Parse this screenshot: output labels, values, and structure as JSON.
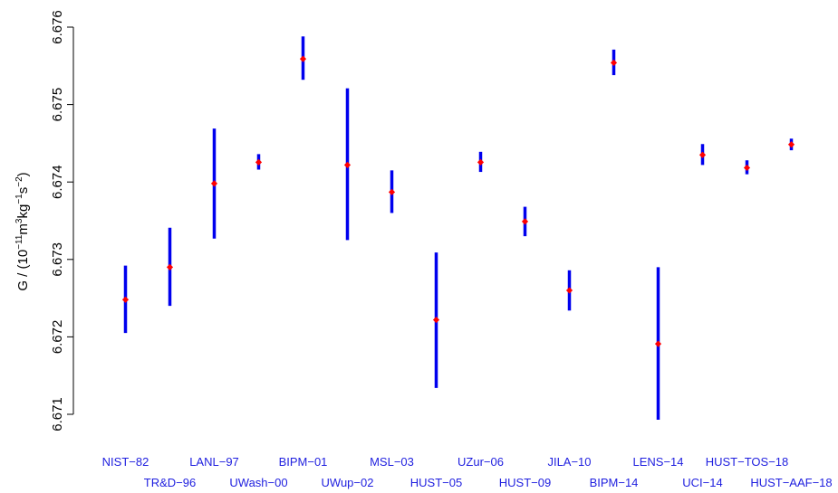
{
  "chart_data": {
    "type": "scatter",
    "title": "",
    "ylabel_parts": {
      "prefix": "G  /  (10",
      "exp1": "−11",
      "unit1": "m",
      "exp2": "3",
      "unit2": "kg",
      "exp3": "−1",
      "unit3": "s",
      "exp4": "−2",
      "suffix": ")"
    },
    "ylim": [
      6.671,
      6.676
    ],
    "yticks": [
      6.671,
      6.672,
      6.673,
      6.674,
      6.675,
      6.676
    ],
    "ytick_labels": [
      "6.671",
      "6.672",
      "6.673",
      "6.674",
      "6.675",
      "6.676"
    ],
    "categories": [
      "NIST−82",
      "TR&D−96",
      "LANL−97",
      "UWash−00",
      "BIPM−01",
      "UWup−02",
      "MSL−03",
      "HUST−05",
      "UZur−06",
      "HUST−09",
      "JILA−10",
      "BIPM−14",
      "LENS−14",
      "UCI−14",
      "HUST−TOS−18",
      "HUST−AAF−18"
    ],
    "values": [
      6.67248,
      6.6729,
      6.67398,
      6.674255,
      6.67559,
      6.67422,
      6.67387,
      6.67222,
      6.674255,
      6.67349,
      6.6726,
      6.67554,
      6.67191,
      6.67435,
      6.674184,
      6.674484
    ],
    "err_low": [
      6.67205,
      6.6724,
      6.67327,
      6.67416,
      6.67532,
      6.67325,
      6.6736,
      6.67134,
      6.67413,
      6.6733,
      6.67234,
      6.67538,
      6.67093,
      6.67422,
      6.6741,
      6.67441
    ],
    "err_high": [
      6.67292,
      6.67341,
      6.67469,
      6.67436,
      6.67588,
      6.67521,
      6.67415,
      6.67309,
      6.67439,
      6.67368,
      6.67286,
      6.67571,
      6.6729,
      6.67449,
      6.67428,
      6.67456
    ],
    "point_color": "#ff0000",
    "errorbar_color": "#0000ee",
    "label_color": "#1f1fdf"
  }
}
